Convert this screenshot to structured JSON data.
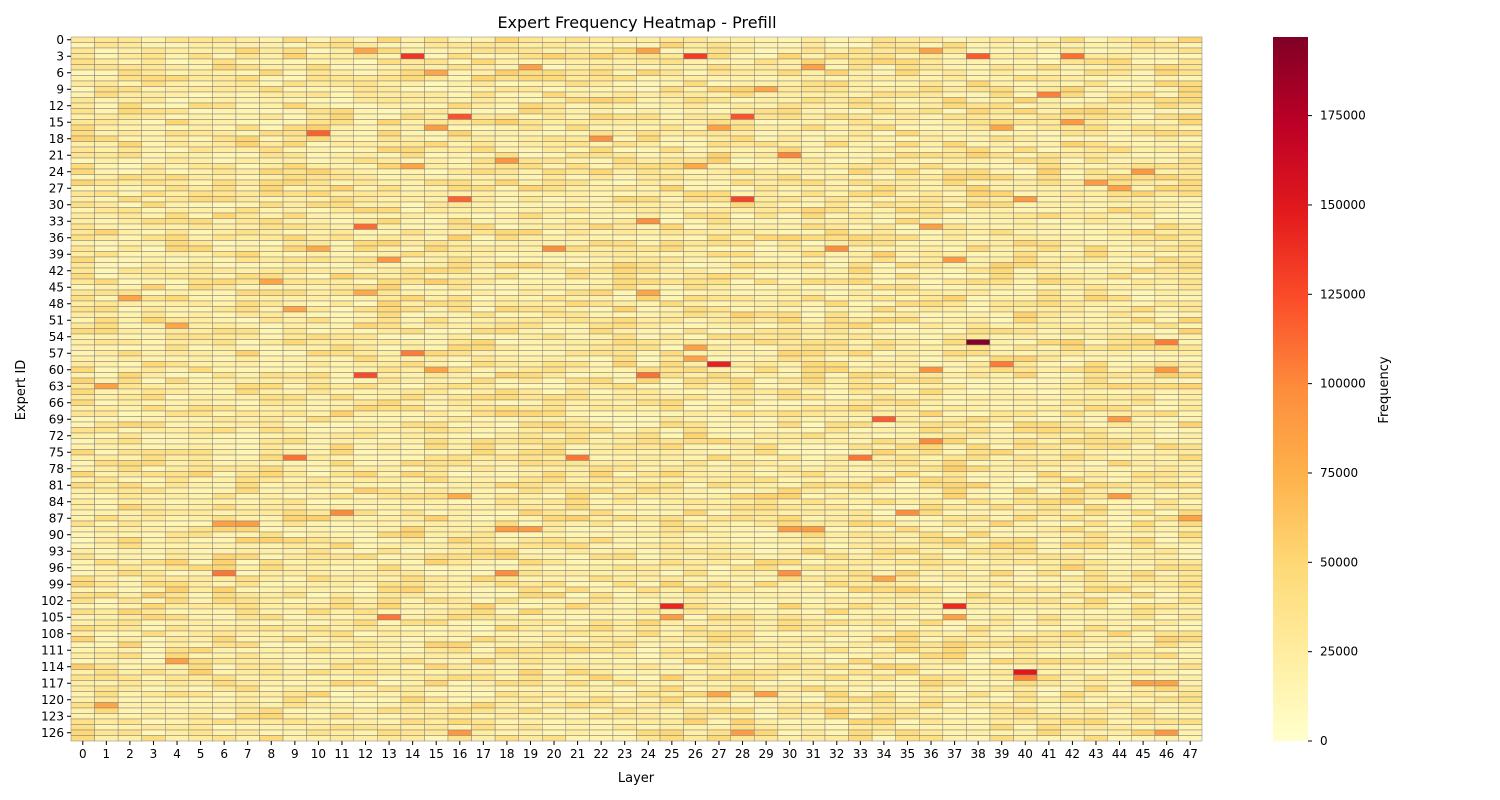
{
  "chart_data": {
    "type": "heatmap",
    "title": "Expert Frequency Heatmap - Prefill",
    "xlabel": "Layer",
    "ylabel": "Expert ID",
    "colorbar_label": "Frequency",
    "x_categories": [
      0,
      1,
      2,
      3,
      4,
      5,
      6,
      7,
      8,
      9,
      10,
      11,
      12,
      13,
      14,
      15,
      16,
      17,
      18,
      19,
      20,
      21,
      22,
      23,
      24,
      25,
      26,
      27,
      28,
      29,
      30,
      31,
      32,
      33,
      34,
      35,
      36,
      37,
      38,
      39,
      40,
      41,
      42,
      43,
      44,
      45,
      46,
      47
    ],
    "y_range": [
      0,
      127
    ],
    "y_tick_labels": [
      0,
      3,
      6,
      9,
      12,
      15,
      18,
      21,
      24,
      27,
      30,
      33,
      36,
      39,
      42,
      45,
      48,
      51,
      54,
      57,
      60,
      63,
      66,
      69,
      72,
      75,
      78,
      81,
      84,
      87,
      90,
      93,
      96,
      99,
      102,
      105,
      108,
      111,
      114,
      117,
      120,
      123,
      126
    ],
    "colorscale": "YlOrRd",
    "color_range": [
      0,
      197000
    ],
    "colorbar_ticks": [
      0,
      25000,
      50000,
      75000,
      100000,
      125000,
      150000,
      175000
    ],
    "colors": {
      "low": "#ffffcc",
      "mid": "#fd8d3c",
      "high": "#800026",
      "gridline": "#808080"
    },
    "background_level": 30000,
    "hotspots": [
      {
        "layer": 38,
        "expert": 55,
        "value": 197000
      },
      {
        "layer": 40,
        "expert": 115,
        "value": 150000
      },
      {
        "layer": 27,
        "expert": 59,
        "value": 145000
      },
      {
        "layer": 25,
        "expert": 103,
        "value": 142000
      },
      {
        "layer": 37,
        "expert": 103,
        "value": 140000
      },
      {
        "layer": 14,
        "expert": 3,
        "value": 135000
      },
      {
        "layer": 26,
        "expert": 3,
        "value": 132000
      },
      {
        "layer": 28,
        "expert": 29,
        "value": 128000
      },
      {
        "layer": 12,
        "expert": 61,
        "value": 125000
      },
      {
        "layer": 16,
        "expert": 14,
        "value": 122000
      },
      {
        "layer": 28,
        "expert": 14,
        "value": 122000
      },
      {
        "layer": 38,
        "expert": 3,
        "value": 118000
      },
      {
        "layer": 34,
        "expert": 69,
        "value": 118000
      },
      {
        "layer": 10,
        "expert": 17,
        "value": 116000
      },
      {
        "layer": 16,
        "expert": 29,
        "value": 115000
      },
      {
        "layer": 12,
        "expert": 34,
        "value": 112000
      },
      {
        "layer": 24,
        "expert": 61,
        "value": 110000
      },
      {
        "layer": 42,
        "expert": 3,
        "value": 110000
      },
      {
        "layer": 9,
        "expert": 76,
        "value": 110000
      },
      {
        "layer": 21,
        "expert": 76,
        "value": 108000
      },
      {
        "layer": 33,
        "expert": 76,
        "value": 108000
      },
      {
        "layer": 13,
        "expert": 105,
        "value": 108000
      },
      {
        "layer": 6,
        "expert": 97,
        "value": 108000
      },
      {
        "layer": 14,
        "expert": 57,
        "value": 106000
      },
      {
        "layer": 39,
        "expert": 59,
        "value": 106000
      },
      {
        "layer": 46,
        "expert": 55,
        "value": 105000
      },
      {
        "layer": 41,
        "expert": 10,
        "value": 104000
      },
      {
        "layer": 30,
        "expert": 21,
        "value": 102000
      },
      {
        "layer": 11,
        "expert": 86,
        "value": 100000
      },
      {
        "layer": 36,
        "expert": 73,
        "value": 100000
      },
      {
        "layer": 20,
        "expert": 38,
        "value": 98000
      },
      {
        "layer": 32,
        "expert": 38,
        "value": 98000
      },
      {
        "layer": 35,
        "expert": 86,
        "value": 98000
      },
      {
        "layer": 18,
        "expert": 97,
        "value": 98000
      },
      {
        "layer": 30,
        "expert": 97,
        "value": 96000
      },
      {
        "layer": 22,
        "expert": 18,
        "value": 96000
      },
      {
        "layer": 24,
        "expert": 33,
        "value": 96000
      },
      {
        "layer": 16,
        "expert": 126,
        "value": 92000
      },
      {
        "layer": 46,
        "expert": 126,
        "value": 92000
      },
      {
        "layer": 28,
        "expert": 126,
        "value": 88000
      },
      {
        "layer": 36,
        "expert": 60,
        "value": 95000
      },
      {
        "layer": 46,
        "expert": 60,
        "value": 92000
      },
      {
        "layer": 18,
        "expert": 22,
        "value": 94000
      },
      {
        "layer": 43,
        "expert": 26,
        "value": 90000
      },
      {
        "layer": 44,
        "expert": 83,
        "value": 90000
      },
      {
        "layer": 45,
        "expert": 24,
        "value": 92000
      },
      {
        "layer": 44,
        "expert": 69,
        "value": 90000
      },
      {
        "layer": 40,
        "expert": 29,
        "value": 90000
      },
      {
        "layer": 13,
        "expert": 40,
        "value": 92000
      },
      {
        "layer": 37,
        "expert": 40,
        "value": 90000
      },
      {
        "layer": 18,
        "expert": 89,
        "value": 90000
      },
      {
        "layer": 19,
        "expert": 89,
        "value": 90000
      },
      {
        "layer": 30,
        "expert": 89,
        "value": 88000
      },
      {
        "layer": 31,
        "expert": 89,
        "value": 88000
      },
      {
        "layer": 7,
        "expert": 88,
        "value": 88000
      },
      {
        "layer": 6,
        "expert": 88,
        "value": 86000
      },
      {
        "layer": 47,
        "expert": 87,
        "value": 85000
      },
      {
        "layer": 16,
        "expert": 14,
        "value": 122000
      },
      {
        "layer": 15,
        "expert": 16,
        "value": 88000
      },
      {
        "layer": 27,
        "expert": 16,
        "value": 86000
      },
      {
        "layer": 39,
        "expert": 16,
        "value": 82000
      },
      {
        "layer": 42,
        "expert": 15,
        "value": 90000
      },
      {
        "layer": 44,
        "expert": 27,
        "value": 86000
      },
      {
        "layer": 36,
        "expert": 34,
        "value": 86000
      },
      {
        "layer": 1,
        "expert": 63,
        "value": 86000
      },
      {
        "layer": 4,
        "expert": 113,
        "value": 86000
      },
      {
        "layer": 45,
        "expert": 117,
        "value": 85000
      },
      {
        "layer": 46,
        "expert": 117,
        "value": 84000
      },
      {
        "layer": 29,
        "expert": 119,
        "value": 86000
      },
      {
        "layer": 27,
        "expert": 119,
        "value": 82000
      },
      {
        "layer": 1,
        "expert": 121,
        "value": 82000
      },
      {
        "layer": 34,
        "expert": 98,
        "value": 82000
      },
      {
        "layer": 25,
        "expert": 105,
        "value": 88000
      },
      {
        "layer": 37,
        "expert": 105,
        "value": 86000
      },
      {
        "layer": 24,
        "expert": 2,
        "value": 86000
      },
      {
        "layer": 36,
        "expert": 2,
        "value": 86000
      },
      {
        "layer": 12,
        "expert": 2,
        "value": 82000
      },
      {
        "layer": 31,
        "expert": 5,
        "value": 86000
      },
      {
        "layer": 19,
        "expert": 5,
        "value": 86000
      },
      {
        "layer": 15,
        "expert": 6,
        "value": 82000
      },
      {
        "layer": 29,
        "expert": 9,
        "value": 82000
      },
      {
        "layer": 26,
        "expert": 56,
        "value": 86000
      },
      {
        "layer": 26,
        "expert": 58,
        "value": 84000
      },
      {
        "layer": 15,
        "expert": 60,
        "value": 84000
      },
      {
        "layer": 2,
        "expert": 47,
        "value": 82000
      },
      {
        "layer": 4,
        "expert": 52,
        "value": 82000
      },
      {
        "layer": 8,
        "expert": 44,
        "value": 82000
      },
      {
        "layer": 12,
        "expert": 46,
        "value": 80000
      },
      {
        "layer": 24,
        "expert": 46,
        "value": 82000
      },
      {
        "layer": 10,
        "expert": 38,
        "value": 80000
      },
      {
        "layer": 14,
        "expert": 23,
        "value": 82000
      },
      {
        "layer": 26,
        "expert": 23,
        "value": 80000
      },
      {
        "layer": 9,
        "expert": 49,
        "value": 82000
      },
      {
        "layer": 16,
        "expert": 83,
        "value": 78000
      },
      {
        "layer": 40,
        "expert": 116,
        "value": 100000
      }
    ]
  }
}
